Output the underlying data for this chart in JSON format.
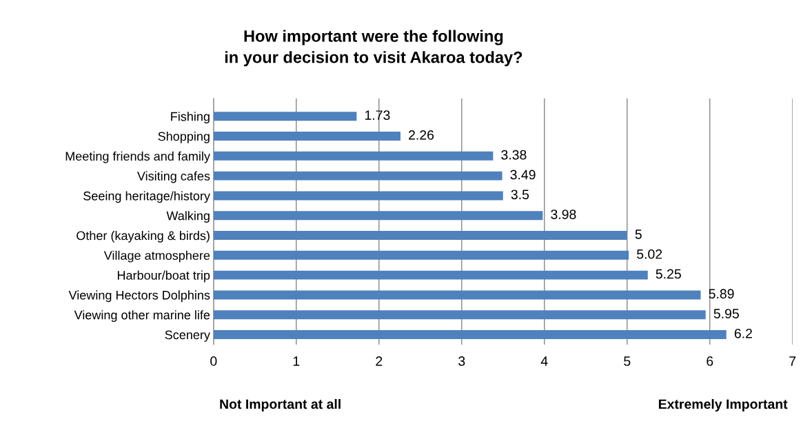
{
  "chart_data": {
    "type": "bar",
    "orientation": "horizontal",
    "title": "How important were the following\nin your decision to visit Akaroa today?",
    "categories": [
      "Fishing",
      "Shopping",
      "Meeting friends and family",
      "Visiting cafes",
      "Seeing heritage/history",
      "Walking",
      "Other (kayaking & birds)",
      "Village atmosphere",
      "Harbour/boat trip",
      "Viewing Hectors Dolphins",
      "Viewing other marine life",
      "Scenery"
    ],
    "values": [
      1.73,
      2.26,
      3.38,
      3.49,
      3.5,
      3.98,
      5,
      5.02,
      5.25,
      5.89,
      5.95,
      6.2
    ],
    "color": "#4f81bd",
    "xlim": [
      0,
      7
    ],
    "xticks": [
      0,
      1,
      2,
      3,
      4,
      5,
      6,
      7
    ],
    "grid": "x",
    "data_labels": true,
    "annotations": [
      "Not Important at all",
      "Extremely Important"
    ]
  }
}
